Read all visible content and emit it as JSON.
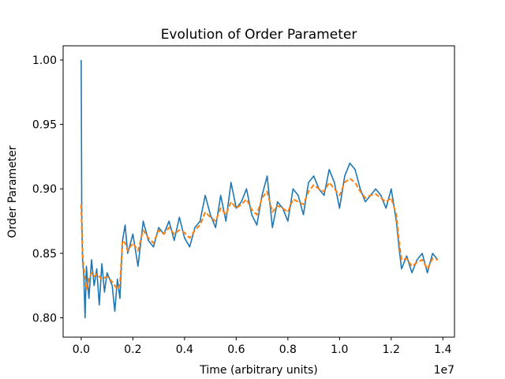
{
  "chart_data": {
    "type": "line",
    "title": "Evolution of Order Parameter",
    "xlabel": "Time (arbitrary units)",
    "ylabel": "Order Parameter",
    "x_offset_label": "1e7",
    "xlim": [
      -0.07,
      1.445
    ],
    "ylim": [
      0.785,
      1.011
    ],
    "x_ticks": [
      0.0,
      0.2,
      0.4,
      0.6,
      0.8,
      1.0,
      1.2,
      1.4
    ],
    "x_tick_labels": [
      "0.0",
      "0.2",
      "0.4",
      "0.6",
      "0.8",
      "1.0",
      "1.2",
      "1.4"
    ],
    "y_ticks": [
      0.8,
      0.85,
      0.9,
      0.95,
      1.0
    ],
    "y_tick_labels": [
      "0.80",
      "0.85",
      "0.90",
      "0.95",
      "1.00"
    ],
    "grid": false,
    "series": [
      {
        "style": "solid",
        "color": "#1f77b4",
        "x": [
          0.0,
          0.002,
          0.005,
          0.01,
          0.015,
          0.02,
          0.03,
          0.04,
          0.05,
          0.06,
          0.07,
          0.08,
          0.09,
          0.1,
          0.11,
          0.12,
          0.13,
          0.14,
          0.15,
          0.16,
          0.17,
          0.18,
          0.2,
          0.22,
          0.24,
          0.26,
          0.28,
          0.3,
          0.32,
          0.34,
          0.36,
          0.38,
          0.4,
          0.42,
          0.44,
          0.46,
          0.48,
          0.5,
          0.52,
          0.54,
          0.56,
          0.58,
          0.6,
          0.62,
          0.64,
          0.66,
          0.68,
          0.7,
          0.72,
          0.74,
          0.76,
          0.78,
          0.8,
          0.82,
          0.84,
          0.86,
          0.88,
          0.9,
          0.92,
          0.94,
          0.96,
          0.98,
          1.0,
          1.02,
          1.04,
          1.06,
          1.08,
          1.1,
          1.12,
          1.14,
          1.16,
          1.18,
          1.2,
          1.22,
          1.23,
          1.24,
          1.26,
          1.28,
          1.3,
          1.32,
          1.34,
          1.36,
          1.38
        ],
        "y": [
          1.0,
          0.88,
          0.845,
          0.833,
          0.8,
          0.84,
          0.815,
          0.845,
          0.825,
          0.838,
          0.81,
          0.842,
          0.82,
          0.835,
          0.83,
          0.825,
          0.805,
          0.83,
          0.815,
          0.86,
          0.872,
          0.85,
          0.865,
          0.84,
          0.875,
          0.86,
          0.855,
          0.87,
          0.865,
          0.875,
          0.86,
          0.878,
          0.862,
          0.855,
          0.87,
          0.875,
          0.895,
          0.88,
          0.87,
          0.895,
          0.875,
          0.905,
          0.885,
          0.89,
          0.9,
          0.88,
          0.872,
          0.895,
          0.91,
          0.87,
          0.89,
          0.885,
          0.875,
          0.9,
          0.895,
          0.88,
          0.905,
          0.91,
          0.9,
          0.895,
          0.915,
          0.905,
          0.885,
          0.91,
          0.92,
          0.915,
          0.9,
          0.89,
          0.895,
          0.9,
          0.895,
          0.885,
          0.9,
          0.875,
          0.855,
          0.838,
          0.848,
          0.835,
          0.845,
          0.85,
          0.835,
          0.85,
          0.845
        ]
      },
      {
        "style": "dashed",
        "color": "#ff7f0e",
        "x": [
          0.0,
          0.005,
          0.01,
          0.02,
          0.03,
          0.04,
          0.05,
          0.06,
          0.08,
          0.1,
          0.12,
          0.14,
          0.15,
          0.16,
          0.17,
          0.18,
          0.2,
          0.22,
          0.24,
          0.26,
          0.28,
          0.3,
          0.32,
          0.34,
          0.36,
          0.38,
          0.4,
          0.42,
          0.44,
          0.46,
          0.48,
          0.5,
          0.52,
          0.54,
          0.56,
          0.58,
          0.6,
          0.62,
          0.64,
          0.66,
          0.68,
          0.7,
          0.72,
          0.74,
          0.76,
          0.78,
          0.8,
          0.82,
          0.84,
          0.86,
          0.88,
          0.9,
          0.92,
          0.94,
          0.96,
          0.98,
          1.0,
          1.02,
          1.04,
          1.06,
          1.08,
          1.1,
          1.12,
          1.14,
          1.16,
          1.18,
          1.2,
          1.22,
          1.23,
          1.24,
          1.26,
          1.28,
          1.3,
          1.32,
          1.34,
          1.36,
          1.38
        ],
        "y": [
          0.888,
          0.85,
          0.838,
          0.822,
          0.83,
          0.835,
          0.832,
          0.834,
          0.83,
          0.832,
          0.828,
          0.822,
          0.826,
          0.86,
          0.858,
          0.852,
          0.858,
          0.852,
          0.868,
          0.862,
          0.858,
          0.868,
          0.865,
          0.87,
          0.865,
          0.868,
          0.866,
          0.862,
          0.868,
          0.872,
          0.882,
          0.878,
          0.875,
          0.885,
          0.88,
          0.89,
          0.885,
          0.888,
          0.892,
          0.884,
          0.88,
          0.893,
          0.898,
          0.882,
          0.887,
          0.885,
          0.882,
          0.892,
          0.89,
          0.888,
          0.898,
          0.903,
          0.9,
          0.898,
          0.905,
          0.9,
          0.895,
          0.905,
          0.908,
          0.905,
          0.898,
          0.893,
          0.895,
          0.896,
          0.893,
          0.89,
          0.893,
          0.88,
          0.86,
          0.845,
          0.846,
          0.84,
          0.843,
          0.845,
          0.838,
          0.846,
          0.845
        ]
      }
    ]
  }
}
